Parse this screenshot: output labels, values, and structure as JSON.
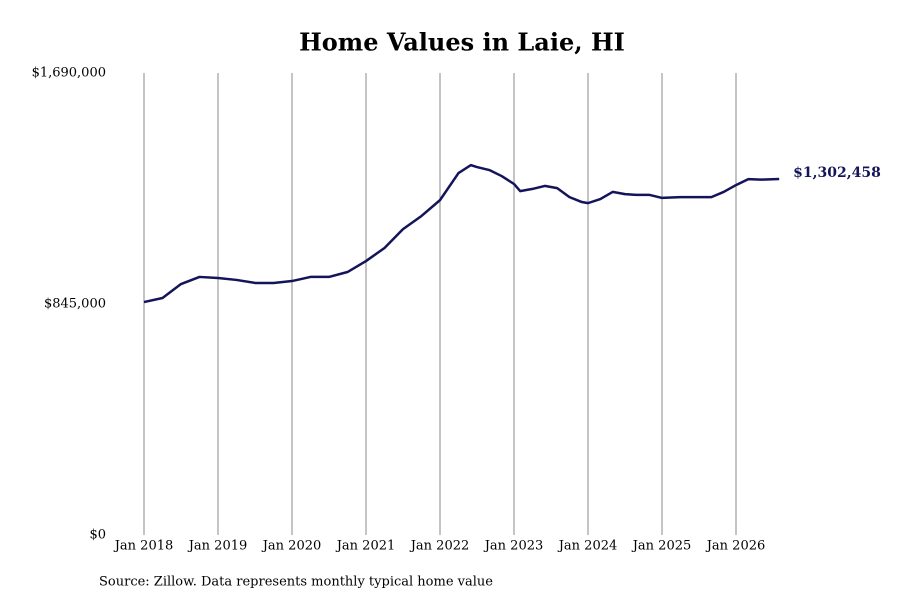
{
  "chart_data": {
    "type": "line",
    "title": "Home Values in Laie, HI",
    "source": "Source: Zillow. Data represents monthly typical home value",
    "x": [
      "2018-01",
      "2018-04",
      "2018-07",
      "2018-10",
      "2019-01",
      "2019-04",
      "2019-07",
      "2019-10",
      "2020-01",
      "2020-04",
      "2020-07",
      "2020-10",
      "2021-01",
      "2021-04",
      "2021-07",
      "2021-10",
      "2022-01",
      "2022-04",
      "2022-06",
      "2022-07",
      "2022-09",
      "2022-11",
      "2023-01",
      "2023-02",
      "2023-04",
      "2023-06",
      "2023-08",
      "2023-10",
      "2023-12",
      "2024-01",
      "2024-03",
      "2024-05",
      "2024-07",
      "2024-09",
      "2024-11",
      "2025-01",
      "2025-04",
      "2025-07",
      "2025-09",
      "2025-11",
      "2026-01",
      "2026-03",
      "2026-05",
      "2026-08"
    ],
    "series": [
      {
        "name": "Home value",
        "color": "#14145a",
        "values": [
          852000,
          867000,
          918000,
          944000,
          940000,
          933000,
          922000,
          922000,
          929000,
          944000,
          944000,
          962000,
          1002000,
          1050000,
          1119000,
          1167000,
          1225000,
          1324000,
          1353000,
          1346000,
          1335000,
          1313000,
          1284000,
          1258000,
          1266000,
          1277000,
          1269000,
          1236000,
          1218000,
          1214000,
          1229000,
          1255000,
          1247000,
          1244000,
          1244000,
          1233000,
          1236000,
          1236000,
          1236000,
          1255000,
          1280000,
          1302000,
          1300000,
          1302458
        ],
        "value_labels": {
          "43": "$1,302,458"
        }
      }
    ],
    "ylim": [
      0,
      1690000
    ],
    "yticks": [
      {
        "value": 0,
        "label": "$0"
      },
      {
        "value": 845000,
        "label": "$845,000"
      },
      {
        "value": 1690000,
        "label": "$1,690,000"
      }
    ],
    "xticks": [
      {
        "value": "2018-01",
        "label": "Jan 2018"
      },
      {
        "value": "2019-01",
        "label": "Jan 2019"
      },
      {
        "value": "2020-01",
        "label": "Jan 2020"
      },
      {
        "value": "2021-01",
        "label": "Jan 2021"
      },
      {
        "value": "2022-01",
        "label": "Jan 2022"
      },
      {
        "value": "2023-01",
        "label": "Jan 2023"
      },
      {
        "value": "2024-01",
        "label": "Jan 2024"
      },
      {
        "value": "2025-01",
        "label": "Jan 2025"
      },
      {
        "value": "2026-01",
        "label": "Jan 2026"
      }
    ],
    "grid": "x"
  }
}
